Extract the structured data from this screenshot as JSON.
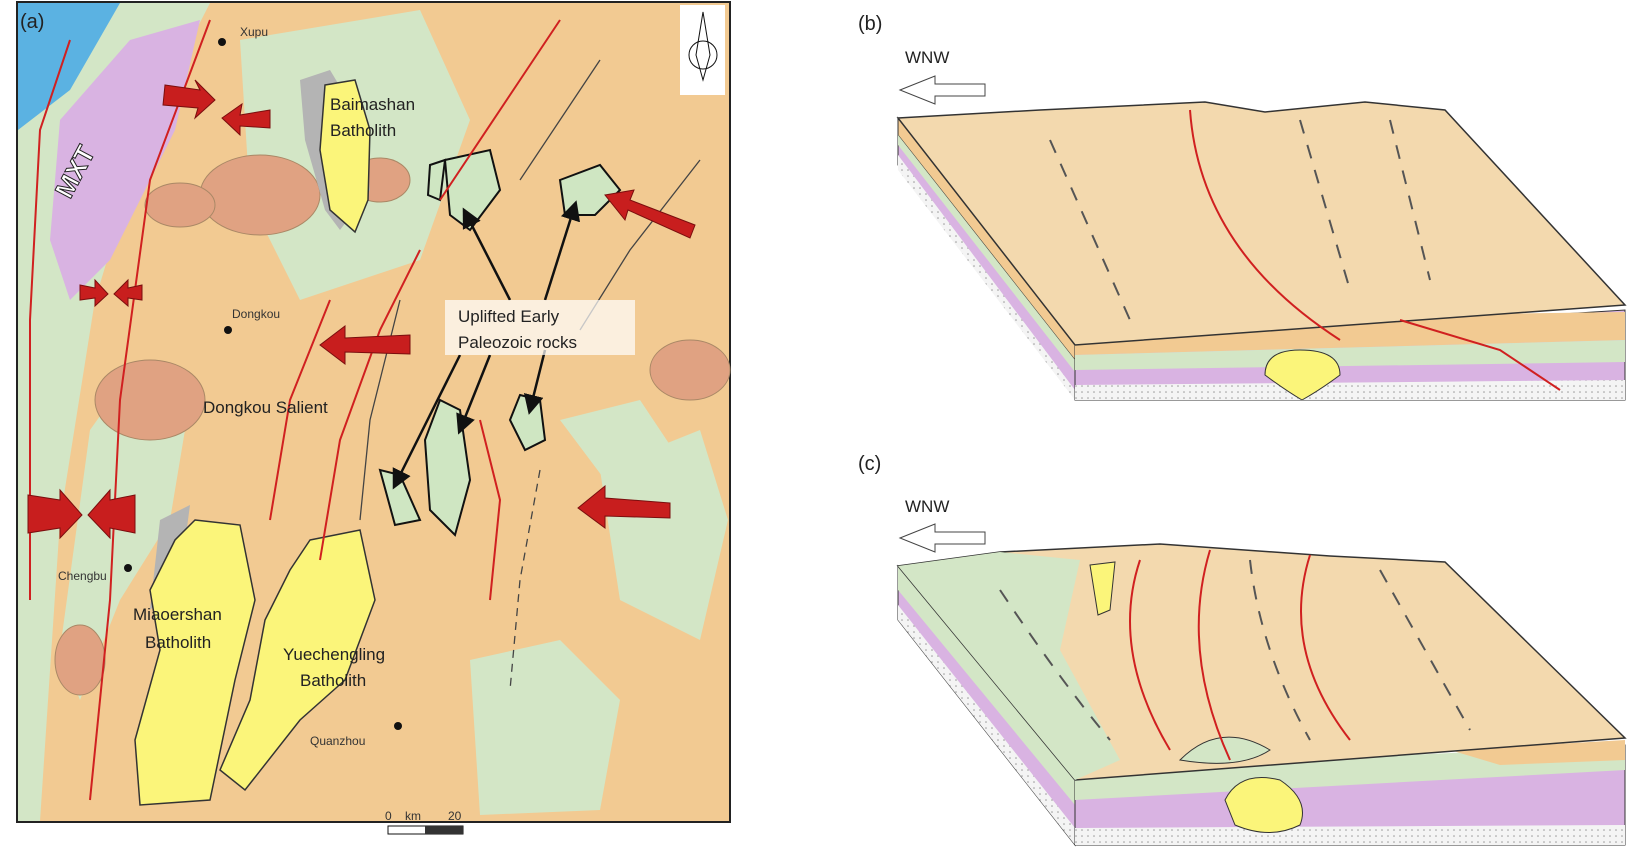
{
  "panel_a": {
    "label": "(a)",
    "places": [
      "Xupu",
      "Dongkou",
      "Chengbu",
      "Quanzhou"
    ],
    "mxt": "MXT",
    "batholiths": [
      {
        "lines": [
          "Baimashan",
          "Batholith"
        ]
      },
      {
        "lines": [
          "Miaoershan",
          "Batholith"
        ]
      },
      {
        "lines": [
          "Yuechengling",
          "Batholith"
        ]
      }
    ],
    "uplift_label": [
      "Uplifted Early",
      "Paleozoic rocks"
    ],
    "salient": "Dongkou Salient",
    "scale_bar": [
      "0",
      "km",
      "20"
    ]
  },
  "panel_b": {
    "label": "(b)",
    "direction": "WNW"
  },
  "panel_c": {
    "label": "(c)",
    "direction": "WNW"
  }
}
